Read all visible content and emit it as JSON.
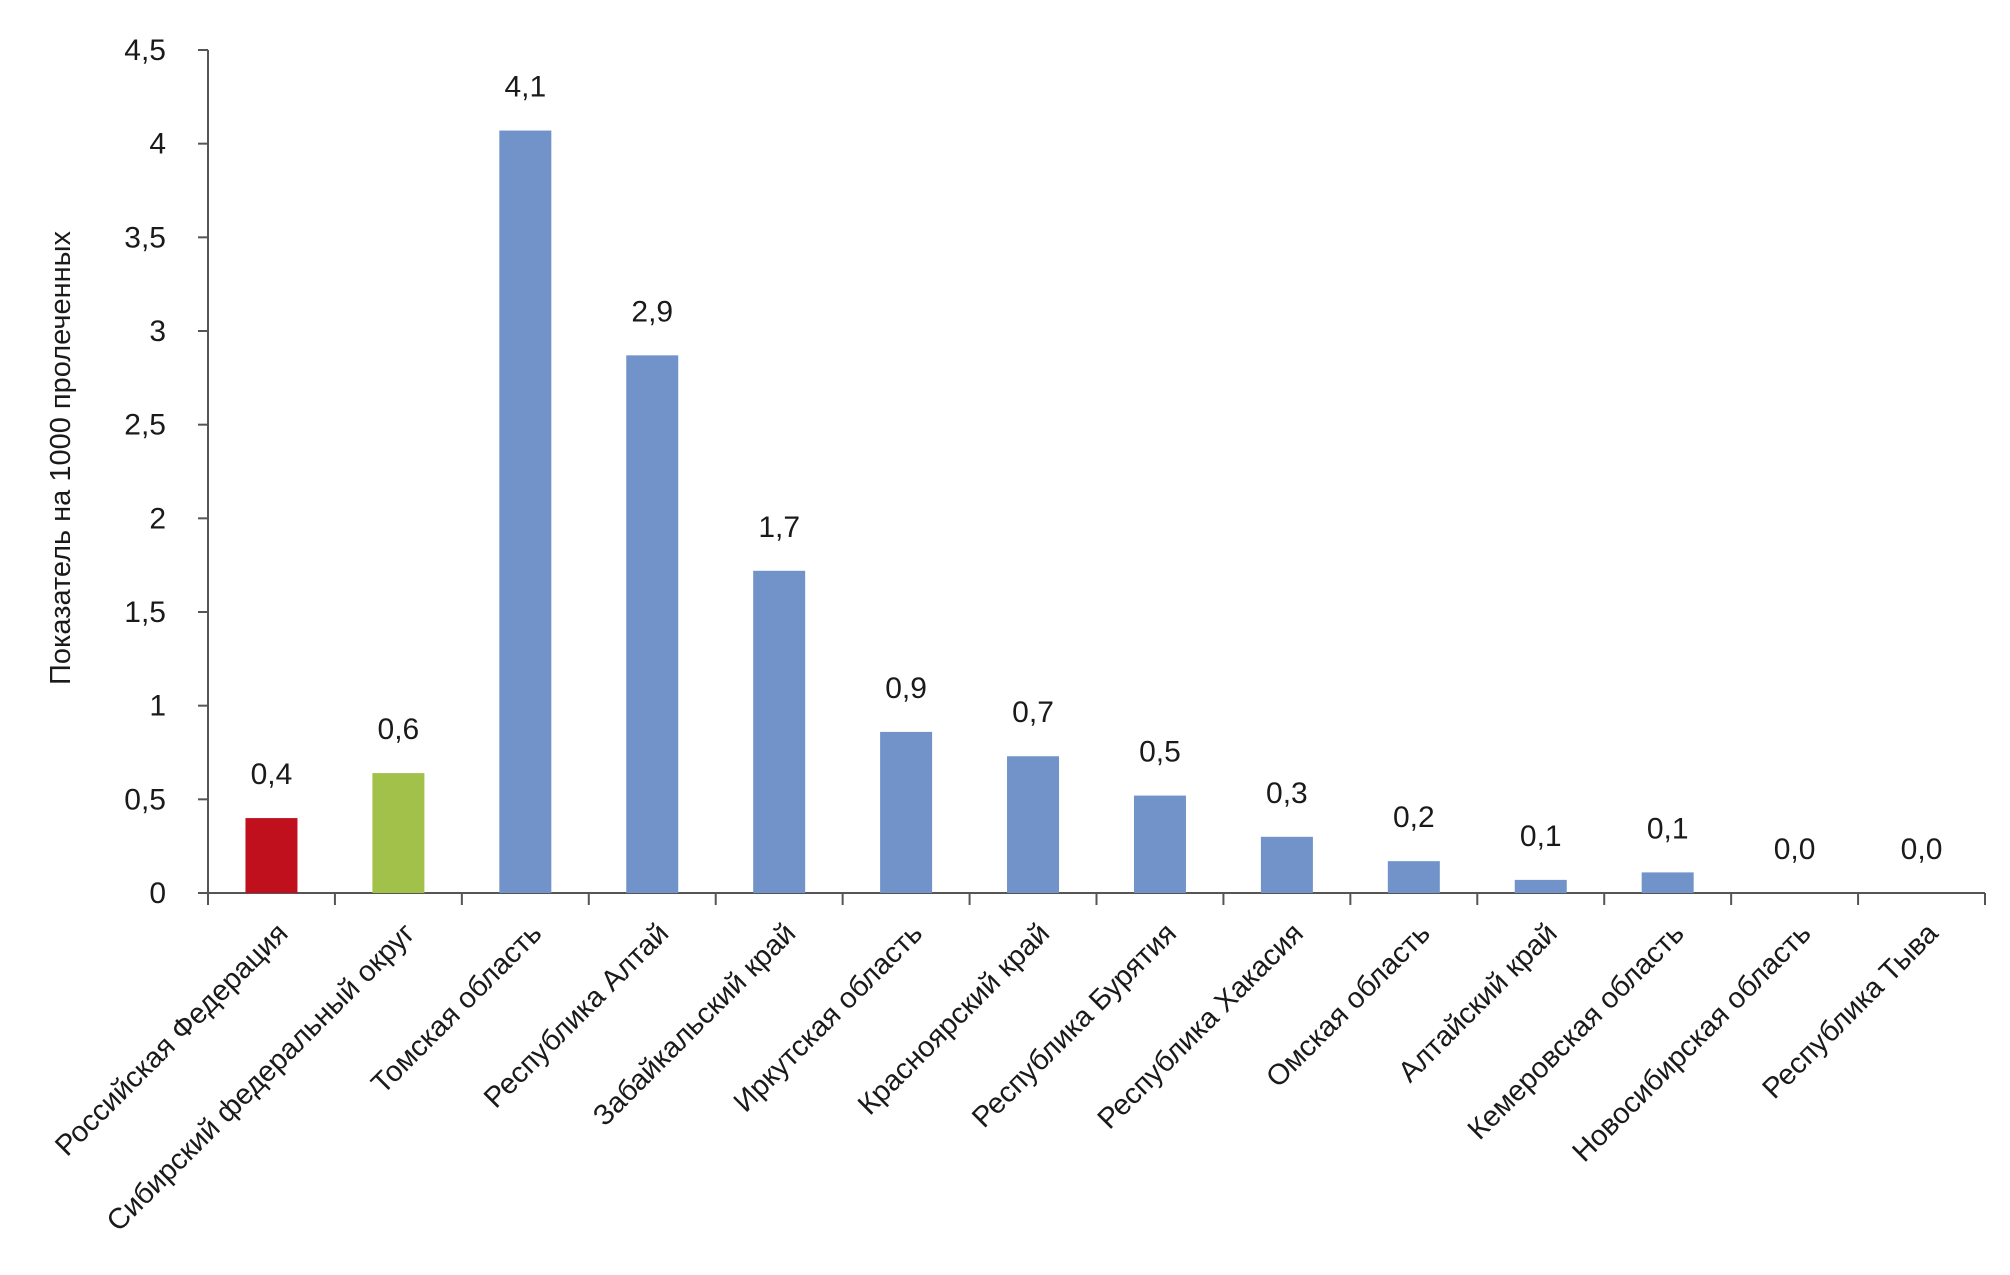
{
  "chart_data": {
    "type": "bar",
    "title": "",
    "xlabel": "",
    "ylabel": "Показатель на 1000 пролеченных",
    "ylim": [
      0,
      4.5
    ],
    "yticks": [
      0,
      0.5,
      1,
      1.5,
      2,
      2.5,
      3,
      3.5,
      4,
      4.5
    ],
    "ytick_labels": [
      "0",
      "0,5",
      "1",
      "1,5",
      "2",
      "2,5",
      "3",
      "3,5",
      "4",
      "4,5"
    ],
    "grid": false,
    "categories": [
      "Российская Федерация",
      "Сибирский федеральный округ",
      "Томская область",
      "Республика Алтай",
      "Забайкальский край",
      "Иркутская область",
      "Красноярский край",
      "Республика Бурятия",
      "Республика Хакасия",
      "Омская область",
      "Алтайский край",
      "Кемеровская область",
      "Новосибирская область",
      "Республика Тыва"
    ],
    "values": [
      0.4,
      0.64,
      4.07,
      2.87,
      1.72,
      0.86,
      0.73,
      0.52,
      0.3,
      0.17,
      0.07,
      0.11,
      0.0,
      0.0
    ],
    "data_labels": [
      "0,4",
      "0,6",
      "4,1",
      "2,9",
      "1,7",
      "0,9",
      "0,7",
      "0,5",
      "0,3",
      "0,2",
      "0,1",
      "0,1",
      "0,0",
      "0,0"
    ],
    "colors": [
      "#c0101e",
      "#a2c14a",
      "#7193c9",
      "#7193c9",
      "#7193c9",
      "#7193c9",
      "#7193c9",
      "#7193c9",
      "#7193c9",
      "#7193c9",
      "#7193c9",
      "#7193c9",
      "#7193c9",
      "#7193c9"
    ]
  }
}
